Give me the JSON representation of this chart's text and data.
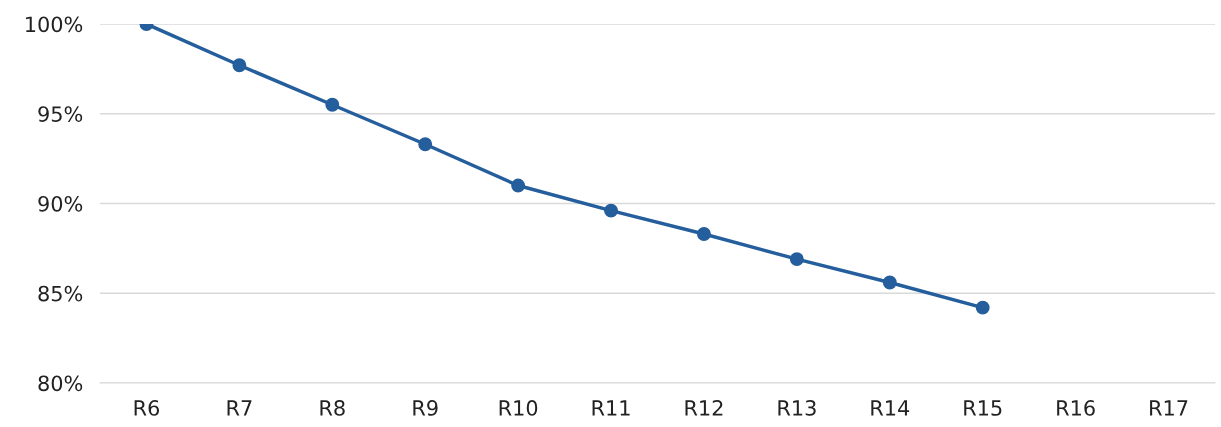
{
  "chart_data": {
    "type": "line",
    "categories": [
      "R6",
      "R7",
      "R8",
      "R9",
      "R10",
      "R11",
      "R12",
      "R13",
      "R14",
      "R15",
      "R16",
      "R17"
    ],
    "series": [
      {
        "color": "#255e9c",
        "values": [
          100,
          97.7,
          95.5,
          93.3,
          91.0,
          89.6,
          88.3,
          86.9,
          85.6,
          84.2,
          null,
          null
        ]
      }
    ],
    "ylim": [
      80,
      100
    ],
    "yticks": [
      {
        "value": 80,
        "label": "80%"
      },
      {
        "value": 85,
        "label": "85%"
      },
      {
        "value": 90,
        "label": "90%"
      },
      {
        "value": 95,
        "label": "95%"
      },
      {
        "value": 100,
        "label": "100%"
      }
    ],
    "grid": "y",
    "marker": "circle",
    "line_style": "solid",
    "legend": false
  }
}
